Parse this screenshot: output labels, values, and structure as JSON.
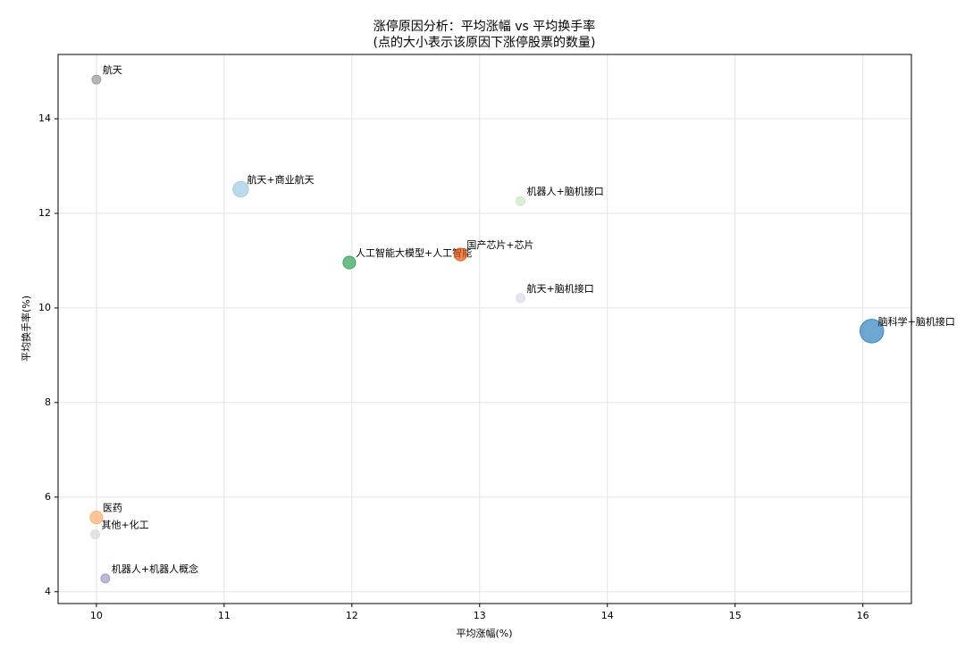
{
  "chart_data": {
    "type": "scatter",
    "title": "涨停原因分析：平均涨幅 vs 平均换手率",
    "subtitle": "(点的大小表示该原因下涨停股票的数量)",
    "x_label": "平均涨幅(%)",
    "y_label": "平均换手率(%)",
    "categories": [
      "航天",
      "航天+商业航天",
      "机器人+脑机接口",
      "人工智能大模型+人工智能",
      "国产芯片+芯片",
      "航天+脑机接口",
      "脑科学+脑机接口",
      "医药",
      "其他+化工",
      "机器人+机器人概念"
    ],
    "x": [
      10.0,
      11.13,
      13.32,
      11.98,
      12.85,
      13.32,
      16.07,
      10.0,
      9.99,
      10.07
    ],
    "values": [
      14.83,
      12.51,
      12.26,
      10.96,
      11.13,
      10.21,
      9.51,
      5.57,
      5.21,
      4.28
    ],
    "sizes": [
      1,
      3,
      1,
      2,
      2,
      1,
      7,
      2,
      1,
      1
    ],
    "colors": [
      "#999999",
      "#9ecae1",
      "#c7e9c0",
      "#31a354",
      "#e6550d",
      "#dadaeb",
      "#3182bd",
      "#fdae6b",
      "#d9d9d9",
      "#9e9ac8"
    ],
    "xlim": [
      9.7,
      16.38
    ],
    "ylim": [
      3.75,
      15.36
    ],
    "xticks": [
      10,
      11,
      12,
      13,
      14,
      15,
      16
    ],
    "yticks": [
      4,
      6,
      8,
      10,
      12,
      14
    ],
    "grid": true
  }
}
